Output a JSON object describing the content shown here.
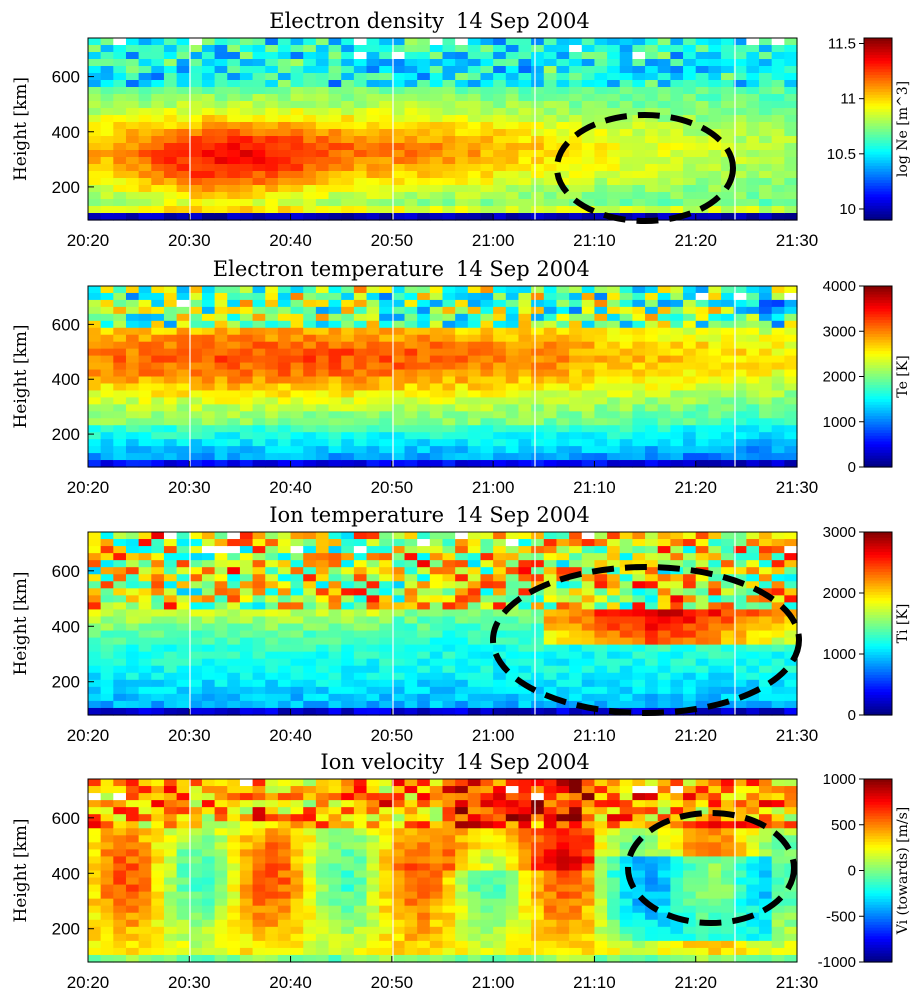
{
  "chart_data": [
    {
      "type": "heatmap",
      "title": "Electron density",
      "date": "14 Sep 2004",
      "ylabel": "Height [km]",
      "x_ticks": [
        "20:20",
        "20:30",
        "20:40",
        "20:50",
        "21:00",
        "21:10",
        "21:20",
        "21:30"
      ],
      "y_ticks": [
        200,
        400,
        600
      ],
      "ylim": [
        80,
        740
      ],
      "colorbar": {
        "label": "log Ne [m^3]",
        "ticks": [
          "11.5",
          "11",
          "10.5",
          "10"
        ],
        "range": [
          9.9,
          11.55
        ]
      },
      "colormap": "jet",
      "markers": [
        {
          "shape": "dashed-ellipse",
          "x_time": "21:15",
          "y_height": 255
        }
      ]
    },
    {
      "type": "heatmap",
      "title": "Electron temperature",
      "date": "14 Sep 2004",
      "ylabel": "Height [km]",
      "x_ticks": [
        "20:20",
        "20:30",
        "20:40",
        "20:50",
        "21:00",
        "21:10",
        "21:20",
        "21:30"
      ],
      "y_ticks": [
        200,
        400,
        600
      ],
      "ylim": [
        80,
        740
      ],
      "colorbar": {
        "label": "Te [K]",
        "ticks": [
          "4000",
          "3000",
          "2000",
          "1000",
          "0"
        ],
        "range": [
          0,
          4000
        ]
      },
      "colormap": "jet",
      "markers": []
    },
    {
      "type": "heatmap",
      "title": "Ion temperature",
      "date": "14 Sep 2004",
      "ylabel": "Height [km]",
      "x_ticks": [
        "20:20",
        "20:30",
        "20:40",
        "20:50",
        "21:00",
        "21:10",
        "21:20",
        "21:30"
      ],
      "y_ticks": [
        200,
        400,
        600
      ],
      "ylim": [
        80,
        740
      ],
      "colorbar": {
        "label": "Ti [K]",
        "ticks": [
          "3000",
          "2000",
          "1000",
          "0"
        ],
        "range": [
          0,
          3000
        ]
      },
      "colormap": "jet",
      "markers": [
        {
          "shape": "dashed-ellipse",
          "x_time": "21:15",
          "y_height": 345
        }
      ]
    },
    {
      "type": "heatmap",
      "title": "Ion velocity",
      "date": "14 Sep 2004",
      "ylabel": "Height [km]",
      "x_ticks": [
        "20:20",
        "20:30",
        "20:40",
        "20:50",
        "21:00",
        "21:10",
        "21:20",
        "21:30"
      ],
      "y_ticks": [
        200,
        400,
        600
      ],
      "ylim": [
        80,
        740
      ],
      "colorbar": {
        "label": "Vi (towards) [m/s]",
        "ticks": [
          "1000",
          "500",
          "0",
          "-500",
          "-1000"
        ],
        "range": [
          -1000,
          1000
        ]
      },
      "colormap": "jet",
      "markers": [
        {
          "shape": "dashed-ellipse",
          "x_time": "21:21",
          "y_height": 290
        }
      ]
    }
  ]
}
